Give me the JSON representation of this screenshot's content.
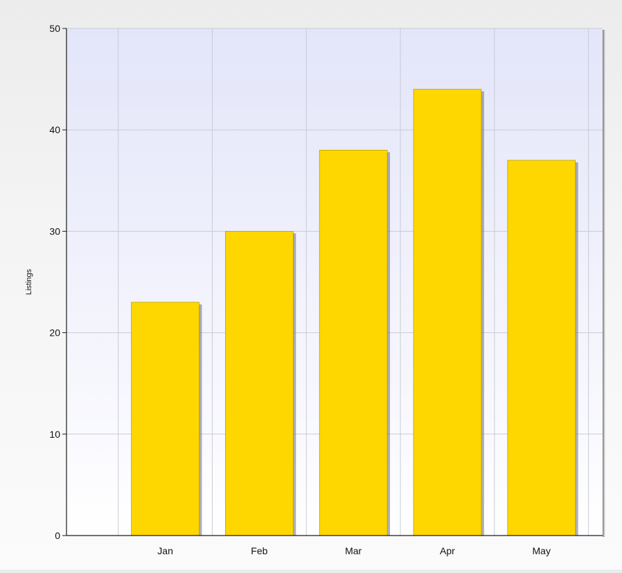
{
  "chart_data": {
    "type": "bar",
    "categories": [
      "Jan",
      "Feb",
      "Mar",
      "Apr",
      "May"
    ],
    "values": [
      23,
      30,
      38,
      44,
      37
    ],
    "title": "",
    "xlabel": "",
    "ylabel": "Listings",
    "ylim": [
      0,
      50
    ],
    "yticks": [
      "0",
      "10",
      "20",
      "30",
      "40",
      "50"
    ],
    "grid": true,
    "legend": "none",
    "colors": {
      "bar": "#FFD700",
      "bar_edge": "#B8A000",
      "bar_shadow": "#6e6e6e",
      "plot_top": "#E3E5F9",
      "plot_bottom": "#FFFFFF",
      "grid": "#C9CAD6",
      "axis": "#1A1A1A"
    }
  }
}
